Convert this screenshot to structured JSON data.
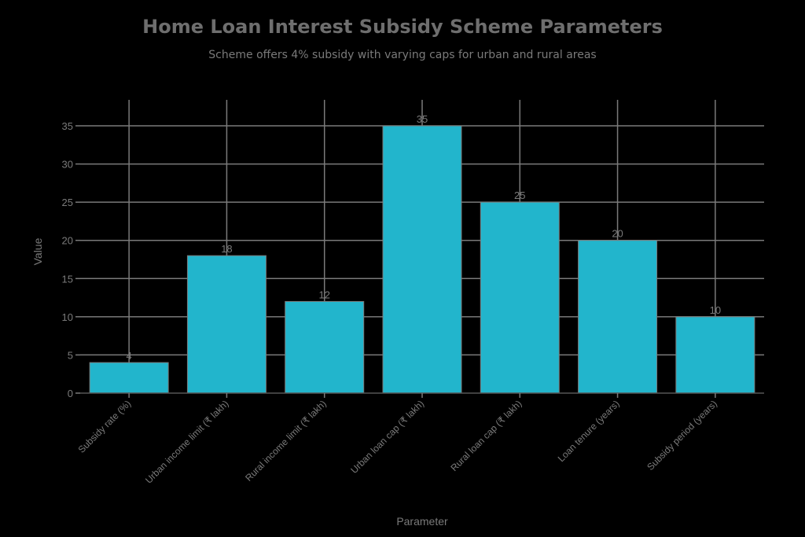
{
  "chart_data": {
    "type": "bar",
    "title": "Home Loan Interest Subsidy Scheme Parameters",
    "subtitle": "Scheme offers 4% subsidy with varying caps for urban and rural areas",
    "xlabel": "Parameter",
    "ylabel": "Value",
    "categories": [
      "Subsidy rate (%)",
      "Urban income limit (₹ lakh)",
      "Rural income limit (₹ lakh)",
      "Urban loan cap (₹ lakh)",
      "Rural loan cap (₹ lakh)",
      "Loan tenure (years)",
      "Subsidy period (years)"
    ],
    "values": [
      4,
      18,
      12,
      35,
      25,
      20,
      10
    ],
    "value_labels": [
      "4",
      "18",
      "12",
      "35",
      "25",
      "20",
      "10"
    ],
    "yticks": [
      0,
      5,
      10,
      15,
      20,
      25,
      30,
      35
    ],
    "ylim": [
      0,
      36
    ],
    "grid": true,
    "legend": "none",
    "colors": {
      "bar": "#22B5CC",
      "bar_border": "#7a7a7a",
      "grid": "#7a7a7a",
      "text": "#7a7a7a",
      "background": "#000000"
    }
  }
}
